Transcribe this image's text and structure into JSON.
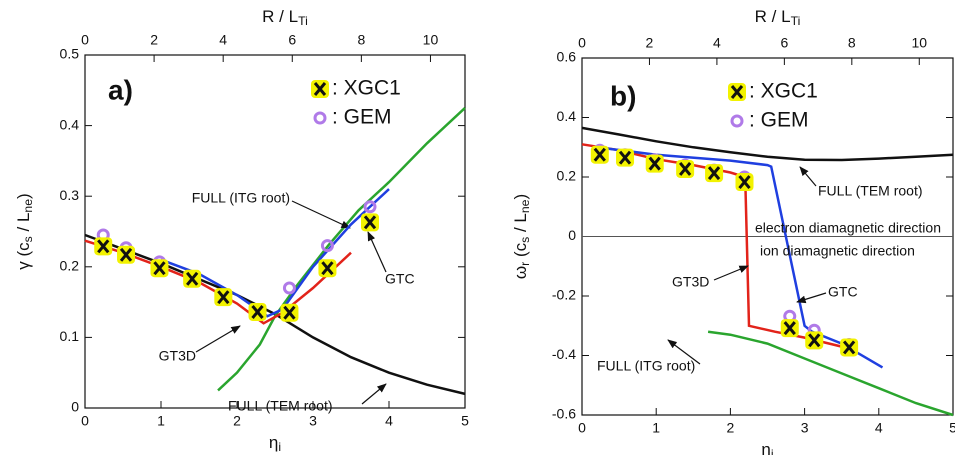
{
  "chart_data": [
    {
      "type": "line",
      "panel_label": "a)",
      "xlabel": [
        "η",
        "i"
      ],
      "ylabel": [
        "γ (c",
        "s",
        " / L",
        "ne",
        ")"
      ],
      "x2label": [
        "R / L",
        "Ti"
      ],
      "xlim": [
        0,
        5
      ],
      "xticks": [
        0,
        1,
        2,
        3,
        4,
        5
      ],
      "ylim": [
        0,
        0.5
      ],
      "yticks": [
        0,
        0.1,
        0.2,
        0.3,
        0.4,
        0.5
      ],
      "x2lim": [
        0,
        11
      ],
      "x2ticks": [
        0,
        2,
        4,
        6,
        8,
        10
      ],
      "series": [
        {
          "name": "FULL (TEM root)",
          "type": "line",
          "color": "#111111",
          "x": [
            0,
            1,
            2,
            2.5,
            3,
            3.5,
            4,
            4.5,
            5
          ],
          "values": [
            0.245,
            0.205,
            0.16,
            0.133,
            0.1,
            0.072,
            0.05,
            0.033,
            0.02
          ]
        },
        {
          "name": "FULL (ITG root)",
          "type": "line",
          "color": "#2aa52e",
          "x": [
            1.75,
            2,
            2.3,
            2.5,
            2.8,
            3.2,
            3.6,
            4,
            4.5,
            5
          ],
          "values": [
            0.025,
            0.05,
            0.09,
            0.13,
            0.175,
            0.23,
            0.28,
            0.32,
            0.375,
            0.425
          ]
        },
        {
          "name": "GT3D",
          "type": "line",
          "color": "#e2231a",
          "x": [
            0,
            0.5,
            1,
            1.5,
            2,
            2.35,
            2.6,
            3,
            3.5
          ],
          "values": [
            0.237,
            0.22,
            0.2,
            0.178,
            0.148,
            0.12,
            0.135,
            0.17,
            0.22
          ]
        },
        {
          "name": "GTC",
          "type": "line",
          "color": "#1f3fe0",
          "x": [
            1,
            1.5,
            2,
            2.4,
            2.6,
            3,
            3.5,
            4
          ],
          "values": [
            0.21,
            0.19,
            0.16,
            0.13,
            0.14,
            0.2,
            0.26,
            0.31
          ]
        },
        {
          "name": ": GEM",
          "type": "scatter",
          "marker": "circle",
          "color": "#b07ae8",
          "x": [
            0.24,
            0.54,
            0.98,
            1.82,
            2.27,
            2.69,
            3.19,
            3.75
          ],
          "values": [
            0.245,
            0.227,
            0.207,
            0.16,
            0.139,
            0.17,
            0.23,
            0.285
          ]
        },
        {
          "name": ": XGC1",
          "type": "scatter",
          "marker": "x",
          "color": "#f2f200",
          "x": [
            0.24,
            0.54,
            0.98,
            1.41,
            1.82,
            2.27,
            2.69,
            3.19,
            3.75
          ],
          "values": [
            0.229,
            0.217,
            0.198,
            0.183,
            0.157,
            0.136,
            0.135,
            0.198,
            0.263
          ]
        }
      ],
      "annotations": []
    },
    {
      "type": "line",
      "panel_label": "b)",
      "xlabel": [
        "η",
        "i"
      ],
      "ylabel": [
        "ω",
        "r",
        " (c",
        "s",
        " / L",
        "ne",
        ")"
      ],
      "x2label": [
        "R / L",
        "Ti"
      ],
      "xlim": [
        0,
        5
      ],
      "xticks": [
        0,
        1,
        2,
        3,
        4,
        5
      ],
      "ylim": [
        -0.6,
        0.6
      ],
      "yticks": [
        -0.6,
        -0.4,
        -0.2,
        0,
        0.2,
        0.4,
        0.6
      ],
      "x2lim": [
        0,
        11
      ],
      "x2ticks": [
        0,
        2,
        4,
        6,
        8,
        10
      ],
      "series": [
        {
          "name": "FULL (TEM root)",
          "type": "line",
          "color": "#111111",
          "x": [
            0,
            0.5,
            1,
            1.5,
            2,
            2.5,
            3,
            3.5,
            4,
            4.5,
            5
          ],
          "values": [
            0.365,
            0.343,
            0.32,
            0.3,
            0.283,
            0.268,
            0.258,
            0.257,
            0.262,
            0.268,
            0.275
          ]
        },
        {
          "name": "FULL (ITG root)",
          "type": "line",
          "color": "#2aa52e",
          "x": [
            1.7,
            2,
            2.5,
            3,
            3.5,
            4,
            4.5,
            5
          ],
          "values": [
            -0.32,
            -0.33,
            -0.36,
            -0.41,
            -0.46,
            -0.51,
            -0.56,
            -0.6
          ]
        },
        {
          "name": "GT3D",
          "type": "line",
          "color": "#e2231a",
          "x": [
            0,
            0.5,
            1,
            1.5,
            2,
            2.2,
            2.25,
            2.6,
            3,
            3.5
          ],
          "values": [
            0.31,
            0.29,
            0.26,
            0.24,
            0.215,
            0.2,
            -0.3,
            -0.32,
            -0.34,
            -0.37
          ]
        },
        {
          "name": "GTC",
          "type": "line",
          "color": "#1f3fe0",
          "x": [
            0.2,
            1,
            2,
            2.5,
            2.55,
            3,
            3.1,
            3.5,
            4.05
          ],
          "values": [
            0.3,
            0.275,
            0.255,
            0.24,
            0.235,
            -0.3,
            -0.32,
            -0.36,
            -0.44
          ]
        },
        {
          "name": ": GEM",
          "type": "scatter",
          "marker": "circle",
          "color": "#b07ae8",
          "x": [
            0.24,
            0.58,
            0.98,
            1.39,
            1.78,
            2.19,
            2.8,
            3.13,
            3.6
          ],
          "values": [
            0.29,
            0.275,
            0.258,
            0.24,
            0.223,
            0.2,
            -0.268,
            -0.315,
            -0.363
          ]
        },
        {
          "name": ": XGC1",
          "type": "scatter",
          "marker": "x",
          "color": "#f2f200",
          "x": [
            0.24,
            0.58,
            0.98,
            1.39,
            1.78,
            2.19,
            2.8,
            3.13,
            3.6
          ],
          "values": [
            0.275,
            0.265,
            0.245,
            0.227,
            0.213,
            0.183,
            -0.308,
            -0.349,
            -0.373
          ]
        }
      ],
      "annotations": [
        "electron diamagnetic direction",
        "ion diamagnetic direction"
      ]
    }
  ]
}
